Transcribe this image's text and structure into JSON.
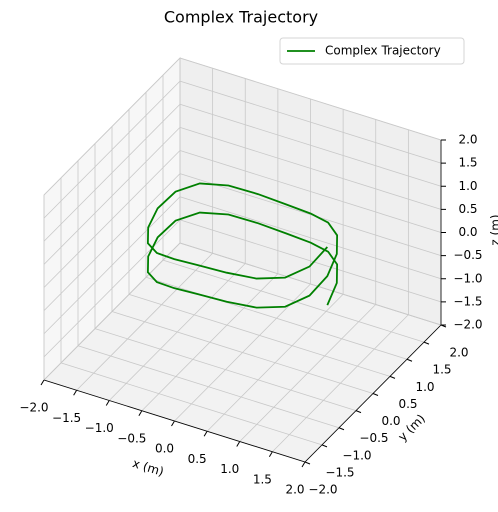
{
  "chart_data": {
    "type": "line3d",
    "title": "Complex Trajectory",
    "x_label": "x (m)",
    "y_label": "y (m)",
    "z_label": "z (m)",
    "xlim": [
      -2,
      2
    ],
    "ylim": [
      -2,
      2
    ],
    "zlim": [
      -2,
      2
    ],
    "xticks": [
      {
        "value": -2,
        "label": "−2.0"
      },
      {
        "value": -1.5,
        "label": "−1.5"
      },
      {
        "value": -1,
        "label": "−1.0"
      },
      {
        "value": -0.5,
        "label": "−0.5"
      },
      {
        "value": 0,
        "label": "0.0"
      },
      {
        "value": 0.5,
        "label": "0.5"
      },
      {
        "value": 1,
        "label": "1.0"
      },
      {
        "value": 1.5,
        "label": "1.5"
      },
      {
        "value": 2,
        "label": "2.0"
      }
    ],
    "yticks": [
      {
        "value": -2,
        "label": "−2.0"
      },
      {
        "value": -1.5,
        "label": "−1.5"
      },
      {
        "value": -1,
        "label": "−1.0"
      },
      {
        "value": -0.5,
        "label": "−0.5"
      },
      {
        "value": 0,
        "label": "0.0"
      },
      {
        "value": 0.5,
        "label": "0.5"
      },
      {
        "value": 1,
        "label": "1.0"
      },
      {
        "value": 1.5,
        "label": "1.5"
      },
      {
        "value": 2,
        "label": "2.0"
      }
    ],
    "zticks": [
      {
        "value": -2,
        "label": "−2.0"
      },
      {
        "value": -1.5,
        "label": "−1.5"
      },
      {
        "value": -1,
        "label": "−1.0"
      },
      {
        "value": -0.5,
        "label": "−0.5"
      },
      {
        "value": 0,
        "label": "0.0"
      },
      {
        "value": 0.5,
        "label": "0.5"
      },
      {
        "value": 1,
        "label": "1.0"
      },
      {
        "value": 1.5,
        "label": "1.5"
      },
      {
        "value": 2,
        "label": "2.0"
      }
    ],
    "grid": true,
    "legend": "upper right",
    "series": [
      {
        "name": "Complex Trajectory",
        "color": "green",
        "x": [
          1.3,
          1.236,
          1.052,
          0.764,
          0.402,
          0,
          -0.402,
          -0.764,
          -1.052,
          -1.236,
          -1.3,
          -1.236,
          -1.052,
          -0.764,
          -0.402,
          0,
          0.402,
          0.764,
          1.052,
          1.236,
          1.3,
          1.236,
          1.052,
          0.764,
          0.402,
          0,
          -0.402,
          -0.764,
          -1.052,
          -1.236,
          -1.3,
          -1.236,
          -1.052,
          -0.764,
          -0.402,
          0,
          0.402,
          0.764,
          1.052,
          1.236,
          1.3
        ],
        "y": [
          0,
          0.402,
          0.764,
          1.052,
          1.236,
          1.3,
          1.236,
          1.052,
          0.764,
          0.402,
          0,
          -0.402,
          -0.764,
          -1.052,
          -1.236,
          -1.3,
          -1.236,
          -1.052,
          -0.764,
          -0.402,
          0,
          0.402,
          0.764,
          1.052,
          1.236,
          1.3,
          1.236,
          1.052,
          0.764,
          0.402,
          0,
          -0.402,
          -0.764,
          -1.052,
          -1.236,
          -1.3,
          -1.236,
          -1.052,
          -0.764,
          -0.402,
          0
        ],
        "z": [
          -0.4,
          -0.247,
          -0.194,
          -0.26,
          -0.362,
          -0.393,
          -0.3,
          -0.134,
          -0.006,
          0.004,
          -0.086,
          -0.175,
          -0.166,
          -0.038,
          0.128,
          0.221,
          0.191,
          0.088,
          0.022,
          0.076,
          0.228,
          0.381,
          0.434,
          0.368,
          0.266,
          0.235,
          0.329,
          0.494,
          0.623,
          0.632,
          0.542,
          0.453,
          0.462,
          0.591,
          0.756,
          0.85,
          0.819,
          0.716,
          0.651,
          0.704,
          0.857
        ]
      }
    ]
  }
}
